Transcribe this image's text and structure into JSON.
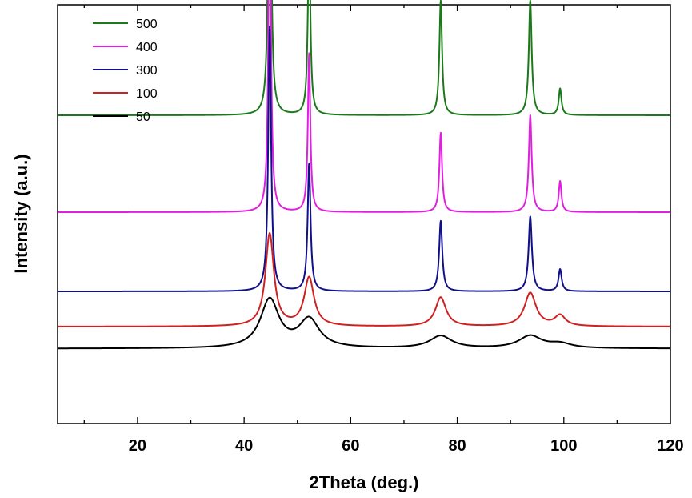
{
  "chart_data": {
    "type": "line",
    "title": "",
    "xlabel": "2Theta (deg.)",
    "ylabel": "Intensity (a.u.)",
    "xlim": [
      5,
      120
    ],
    "x_ticks": [
      20,
      40,
      60,
      80,
      100,
      120
    ],
    "y_ticks_shown": false,
    "grid": false,
    "legend_position": "top-left",
    "peaks_2theta": [
      44.8,
      52.2,
      76.9,
      93.7,
      99.3
    ],
    "series": [
      {
        "name": "500",
        "color": "#1a7a1a",
        "baseline": 4.6,
        "heights": [
          4.6,
          2.1,
          1.3,
          1.3,
          0.3
        ],
        "fwhm": [
          0.55,
          0.55,
          0.6,
          0.65,
          0.6
        ]
      },
      {
        "name": "400",
        "color": "#e020e0",
        "baseline": 3.5,
        "heights": [
          3.9,
          1.8,
          0.9,
          1.1,
          0.35
        ],
        "fwhm": [
          0.55,
          0.55,
          0.6,
          0.65,
          0.6
        ]
      },
      {
        "name": "300",
        "color": "#10108a",
        "baseline": 2.6,
        "heights": [
          3.0,
          1.45,
          0.8,
          0.85,
          0.25
        ],
        "fwhm": [
          0.65,
          0.65,
          0.7,
          0.75,
          0.7
        ]
      },
      {
        "name": "100",
        "color": "#d02020",
        "baseline": 2.2,
        "heights": [
          1.05,
          0.55,
          0.33,
          0.38,
          0.12
        ],
        "fwhm": [
          1.9,
          2.2,
          2.4,
          2.6,
          2.4
        ]
      },
      {
        "name": "50",
        "color": "#000000",
        "baseline": 1.95,
        "heights": [
          0.55,
          0.32,
          0.14,
          0.14,
          0.05
        ],
        "fwhm": [
          4.2,
          4.6,
          5.0,
          5.2,
          5.0
        ]
      }
    ]
  }
}
